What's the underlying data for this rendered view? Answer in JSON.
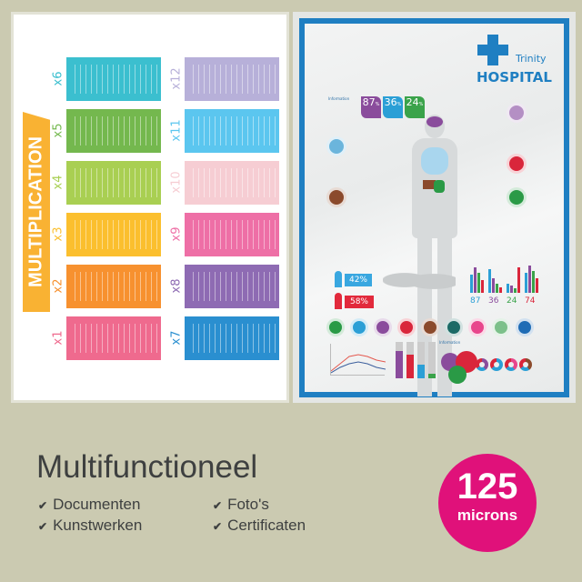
{
  "left_poster": {
    "banner": "MULTIPLICATION",
    "tables": [
      {
        "label": "x6",
        "color": "#3bbfcf"
      },
      {
        "label": "x5",
        "color": "#74b84e"
      },
      {
        "label": "x4",
        "color": "#a9cf52"
      },
      {
        "label": "x3",
        "color": "#fbbf2e"
      },
      {
        "label": "x2",
        "color": "#f7912f"
      },
      {
        "label": "x1",
        "color": "#ef6a8e"
      },
      {
        "label": "x12",
        "color": "#b7b0d9"
      },
      {
        "label": "x11",
        "color": "#5bc6ef"
      },
      {
        "label": "x10",
        "color": "#f6cdd3"
      },
      {
        "label": "x9",
        "color": "#ee6fa6"
      },
      {
        "label": "x8",
        "color": "#8e6bb3"
      },
      {
        "label": "x7",
        "color": "#2a8fd0"
      }
    ]
  },
  "right_poster": {
    "brand_small": "Trinity",
    "brand_large": "HOSPITAL",
    "info_label": "Information",
    "stats": [
      {
        "value": "87",
        "unit": "%",
        "color": "#8a4c9c"
      },
      {
        "value": "36",
        "unit": "%",
        "color": "#2b9fd6"
      },
      {
        "value": "24",
        "unit": "%",
        "color": "#3aa34a"
      }
    ],
    "male_pct": "42%",
    "female_pct": "58%",
    "bar_stats": [
      {
        "value": "87",
        "color": "#2b9fd6"
      },
      {
        "value": "36",
        "color": "#8a4c9c"
      },
      {
        "value": "24",
        "color": "#3aa34a"
      },
      {
        "value": "74",
        "color": "#d9263b"
      }
    ],
    "icon_colors": [
      "#2a9a46",
      "#2b9fd6",
      "#8a4c9c",
      "#d9263b",
      "#8b4a2c",
      "#1c6a66",
      "#e8468c",
      "#7cc08a",
      "#1f6cb5"
    ],
    "info_label_2": "Information",
    "colors": {
      "frame": "#1f7fc2",
      "male": "#39a7e0",
      "female": "#e22a3c"
    }
  },
  "footer": {
    "title": "Multifunctioneel",
    "features": [
      "Documenten",
      "Kunstwerken",
      "Foto's",
      "Certificaten"
    ],
    "check_icon": "✔",
    "badge": {
      "number": "125",
      "unit": "microns",
      "color": "#e0117a"
    }
  }
}
